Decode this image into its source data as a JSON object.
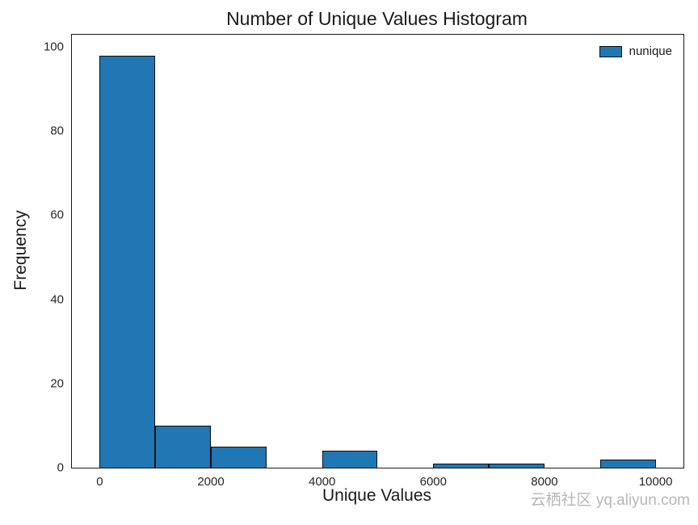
{
  "watermark": "云栖社区 yq.aliyun.com",
  "chart_data": {
    "type": "bar",
    "subtype": "histogram",
    "title": "Number of Unique Values Histogram",
    "xlabel": "Unique Values",
    "ylabel": "Frequency",
    "legend": [
      "nunique"
    ],
    "legend_position": "upper right",
    "bar_color": "#2077b4",
    "bar_edge_color": "#000000",
    "bin_width": 1000,
    "bin_starts": [
      0,
      1000,
      2000,
      3000,
      4000,
      5000,
      6000,
      7000,
      8000,
      9000
    ],
    "values": [
      98,
      10,
      5,
      0,
      4,
      0,
      1,
      1,
      0,
      2
    ],
    "xticks": [
      0,
      2000,
      4000,
      6000,
      8000,
      10000
    ],
    "yticks": [
      0,
      20,
      40,
      60,
      80,
      100
    ],
    "xlim": [
      -500,
      10500
    ],
    "ylim": [
      0,
      102.9
    ],
    "grid": false
  }
}
